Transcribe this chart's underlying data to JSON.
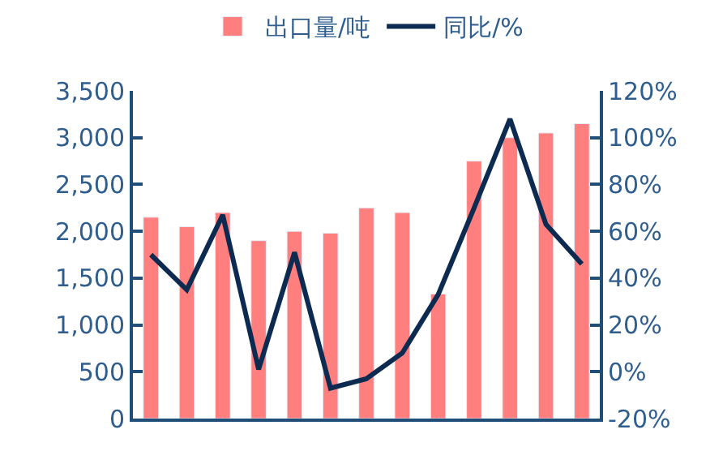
{
  "chart_data": {
    "type": "bar",
    "categories": [
      null,
      null,
      null,
      null,
      null,
      null,
      null,
      null,
      null,
      null,
      null,
      null,
      null
    ],
    "series": [
      {
        "name": "出口量/吨",
        "color": "#ff7f7f",
        "values": [
          2150,
          2050,
          2200,
          1900,
          2000,
          1980,
          2250,
          2200,
          1330,
          2750,
          3000,
          3050,
          3150
        ]
      },
      {
        "name": "同比/%",
        "type": "line",
        "axis": "y2",
        "color": "#0d2b50",
        "values": [
          50,
          35,
          67,
          1,
          51,
          -7,
          -3,
          8,
          33,
          70,
          108,
          63,
          46
        ]
      }
    ],
    "ylim": [
      0,
      3500
    ],
    "yticks": [
      {
        "value": 0,
        "label": "0"
      },
      {
        "value": 500,
        "label": "500"
      },
      {
        "value": 1000,
        "label": "1,000"
      },
      {
        "value": 1500,
        "label": "1,500"
      },
      {
        "value": 2000,
        "label": "2,000"
      },
      {
        "value": 2500,
        "label": "2,500"
      },
      {
        "value": 3000,
        "label": "3,000"
      },
      {
        "value": 3500,
        "label": "3,500"
      }
    ],
    "y2lim": [
      -20,
      120
    ],
    "y2ticks": [
      {
        "value": -20,
        "label": "-20%"
      },
      {
        "value": 0,
        "label": "0%"
      },
      {
        "value": 20,
        "label": "20%"
      },
      {
        "value": 40,
        "label": "40%"
      },
      {
        "value": 60,
        "label": "60%"
      },
      {
        "value": 80,
        "label": "80%"
      },
      {
        "value": 100,
        "label": "100%"
      },
      {
        "value": 120,
        "label": "120%"
      }
    ],
    "legend": "top",
    "marker": "none",
    "tick_labels": "y"
  }
}
